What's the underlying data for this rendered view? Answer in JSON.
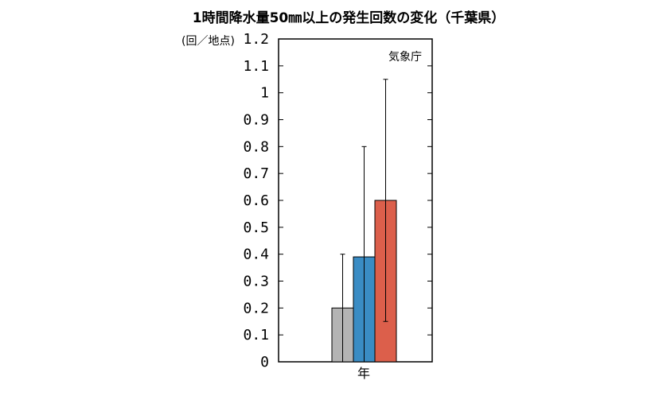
{
  "chart_data": {
    "type": "bar",
    "title": "1時間降水量50㎜以上の発生回数の変化（千葉県）",
    "unit_label": "(回／地点)",
    "annotation": "気象庁",
    "xlabel": "年",
    "ylim": [
      0,
      1.2
    ],
    "yticks": [
      "0",
      "0.1",
      "0.2",
      "0.3",
      "0.4",
      "0.5",
      "0.6",
      "0.7",
      "0.8",
      "0.9",
      "1",
      "1.1",
      "1.2"
    ],
    "ytick_values": [
      0,
      0.1,
      0.2,
      0.3,
      0.4,
      0.5,
      0.6,
      0.7,
      0.8,
      0.9,
      1.0,
      1.1,
      1.2
    ],
    "bars": [
      {
        "value": 0.2,
        "err_low": 0.0,
        "err_high": 0.4,
        "color": "#b4b4b4"
      },
      {
        "value": 0.39,
        "err_low": 0.0,
        "err_high": 0.8,
        "color": "#3a8cc4"
      },
      {
        "value": 0.6,
        "err_low": 0.15,
        "err_high": 1.05,
        "color": "#dc5f4b"
      }
    ],
    "grid": false
  }
}
